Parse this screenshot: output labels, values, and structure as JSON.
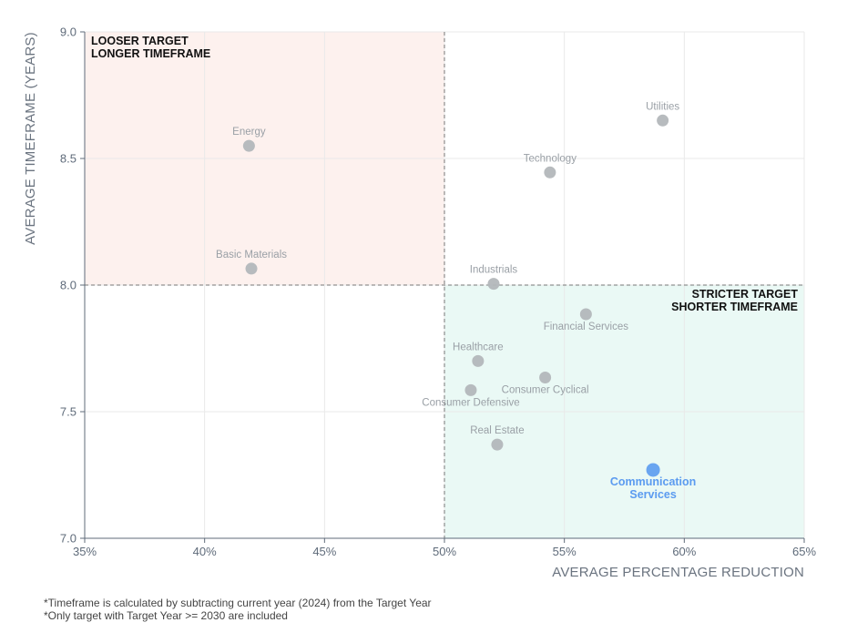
{
  "chart_data": {
    "type": "scatter",
    "xlabel": "AVERAGE PERCENTAGE REDUCTION",
    "ylabel": "AVERAGE TIMEFRAME (YEARS)",
    "xlim": [
      35,
      65
    ],
    "ylim": [
      7.0,
      9.0
    ],
    "x_ticks": [
      {
        "value": 35,
        "label": "35%"
      },
      {
        "value": 40,
        "label": "40%"
      },
      {
        "value": 45,
        "label": "45%"
      },
      {
        "value": 50,
        "label": "50%"
      },
      {
        "value": 55,
        "label": "55%"
      },
      {
        "value": 60,
        "label": "60%"
      },
      {
        "value": 65,
        "label": "65%"
      }
    ],
    "y_ticks": [
      {
        "value": 7.0,
        "label": "7.0"
      },
      {
        "value": 7.5,
        "label": "7.5"
      },
      {
        "value": 8.0,
        "label": "8.0"
      },
      {
        "value": 8.5,
        "label": "8.5"
      },
      {
        "value": 9.0,
        "label": "9.0"
      }
    ],
    "grid": true,
    "reference_lines": {
      "x": 50,
      "y": 8.0
    },
    "quadrants": [
      {
        "name": "loose-long",
        "lines": [
          "LOOSER TARGET",
          "LONGER TIMEFRAME"
        ],
        "x_range": [
          35,
          50
        ],
        "y_range": [
          8.0,
          9.0
        ],
        "color": "#fdf1ee",
        "label_corner": "top-left"
      },
      {
        "name": "strict-short",
        "lines": [
          "STRICTER TARGET",
          "SHORTER TIMEFRAME"
        ],
        "x_range": [
          50,
          65
        ],
        "y_range": [
          7.0,
          8.0
        ],
        "color": "#eaf9f5",
        "label_corner": "top-right"
      }
    ],
    "colors": {
      "point": "#b3b7bb",
      "highlight": "#5b9bf0",
      "reference_line": "#777777"
    },
    "points": [
      {
        "label": "Utilities",
        "x": 59.1,
        "y": 8.65,
        "label_pos": "above"
      },
      {
        "label": "Energy",
        "x": 41.85,
        "y": 8.55,
        "label_pos": "above"
      },
      {
        "label": "Technology",
        "x": 54.4,
        "y": 8.445,
        "label_pos": "above"
      },
      {
        "label": "Basic Materials",
        "x": 41.95,
        "y": 8.065,
        "label_pos": "above"
      },
      {
        "label": "Industrials",
        "x": 52.05,
        "y": 8.005,
        "label_pos": "above"
      },
      {
        "label": "Financial Services",
        "x": 55.9,
        "y": 7.885,
        "label_pos": "below"
      },
      {
        "label": "Healthcare",
        "x": 51.4,
        "y": 7.7,
        "label_pos": "above"
      },
      {
        "label": "Consumer Cyclical",
        "x": 54.2,
        "y": 7.635,
        "label_pos": "below"
      },
      {
        "label": "Consumer Defensive",
        "x": 51.1,
        "y": 7.585,
        "label_pos": "below"
      },
      {
        "label": "Real Estate",
        "x": 52.2,
        "y": 7.37,
        "label_pos": "above"
      },
      {
        "label": [
          "Communication",
          "Services"
        ],
        "x": 58.7,
        "y": 7.27,
        "label_pos": "below",
        "highlight": true
      }
    ]
  },
  "footnotes": [
    "*Timeframe is calculated by subtracting current year (2024) from the Target Year",
    "*Only target with Target Year >= 2030 are included"
  ]
}
